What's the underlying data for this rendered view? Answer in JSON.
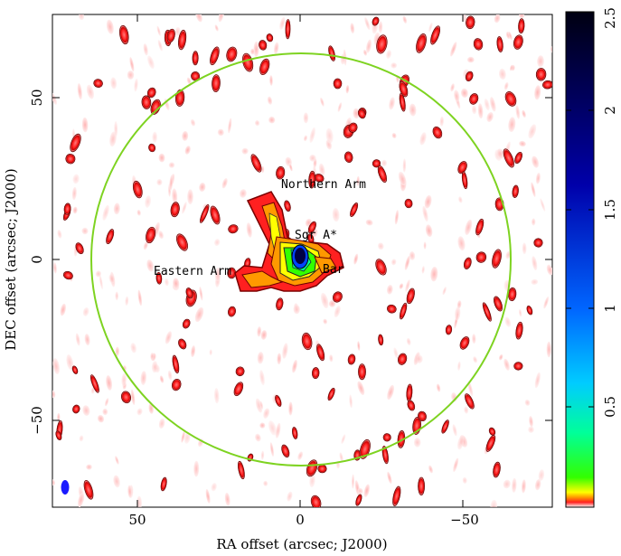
{
  "figure": {
    "xlabel": "RA offset (arcsec; J2000)",
    "ylabel": "DEC offset (arcsec; J2000)",
    "x_ticks": [
      "50",
      "0",
      "−50"
    ],
    "y_ticks": [
      "50",
      "0",
      "−50"
    ],
    "colorbar_ticks": [
      "0.5",
      "1",
      "1.5",
      "2",
      "2.5"
    ],
    "annotations": {
      "northern_arm": "Northern Arm",
      "sgr_a": "Sgr A*",
      "eastern_arm": "Eastern Arm",
      "bar": "Bar"
    },
    "circle_color": "#7ed321",
    "beam_color": "#1a1aff",
    "colormap": [
      "#ffe0e0",
      "#ff2020",
      "#ff9900",
      "#ffff00",
      "#33ff00",
      "#00ff99",
      "#00ccff",
      "#0033ff",
      "#000033"
    ]
  }
}
